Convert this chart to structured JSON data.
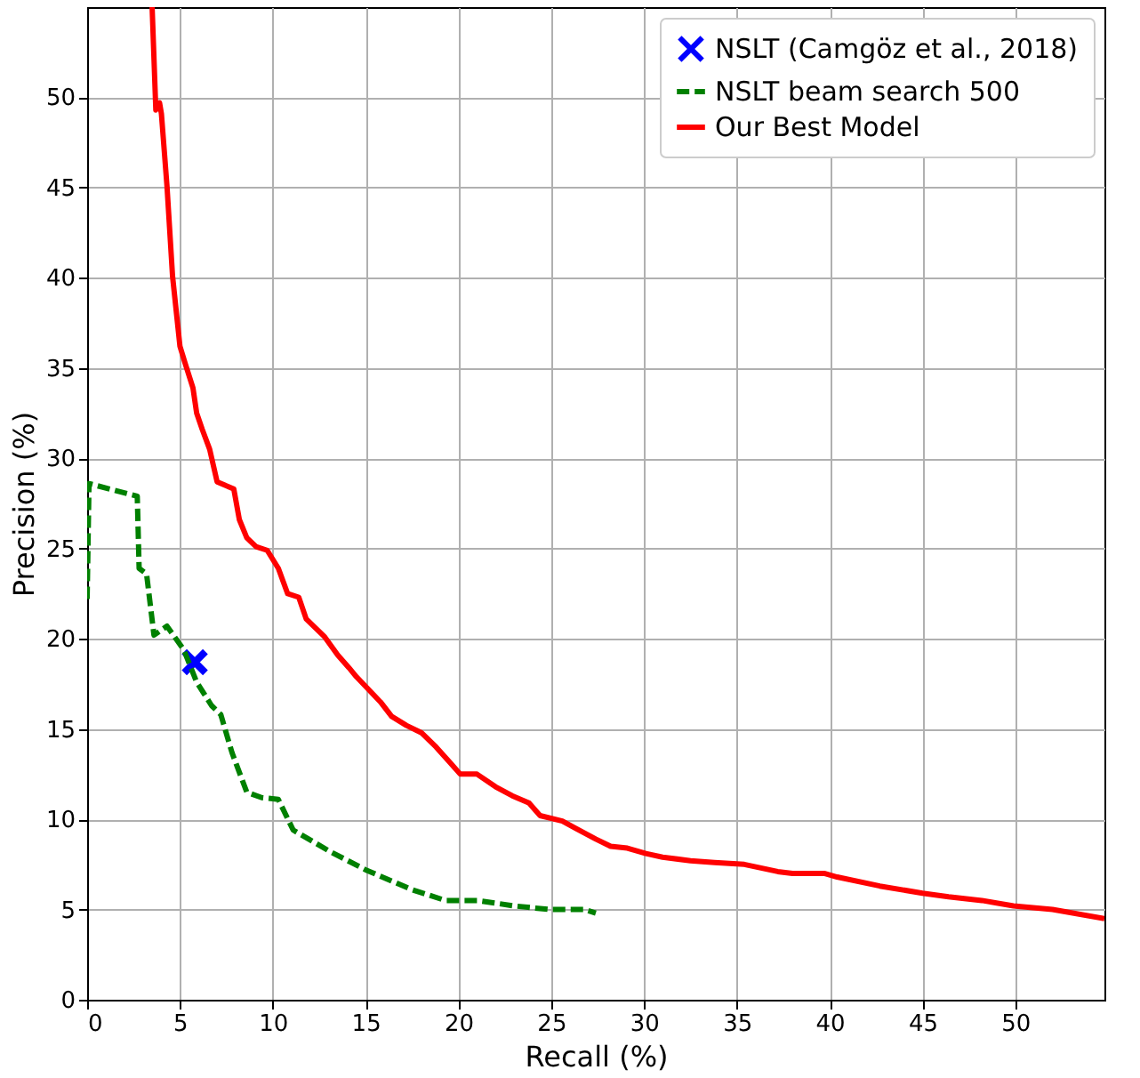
{
  "chart_data": {
    "type": "line",
    "xlabel": "Recall (%)",
    "ylabel": "Precision (%)",
    "xlim": [
      0,
      54.8
    ],
    "ylim": [
      0,
      55
    ],
    "xticks": [
      0,
      5,
      10,
      15,
      20,
      25,
      30,
      35,
      40,
      45,
      50
    ],
    "yticks": [
      0,
      5,
      10,
      15,
      20,
      25,
      30,
      35,
      40,
      45,
      50
    ],
    "grid": true,
    "legend": "top right",
    "series": [
      {
        "name": "NSLT (Camgöz et al., 2018)",
        "type": "scatter",
        "marker": "cross",
        "color": "#0000ff",
        "x": [
          5.8
        ],
        "values": [
          18.7
        ]
      },
      {
        "name": "NSLT beam search 500",
        "line_style": "dashed",
        "color": "#008000",
        "x": [
          0,
          0.1,
          2.7,
          2.8,
          3.2,
          3.6,
          4.3,
          5.2,
          5.9,
          6.7,
          7.2,
          7.8,
          8.6,
          9.4,
          10.3,
          11.1,
          13.1,
          15.0,
          17.5,
          19.3,
          21.0,
          23.0,
          24.9,
          26.8,
          27.4
        ],
        "values": [
          22.2,
          28.6,
          27.9,
          23.9,
          23.6,
          20.2,
          20.7,
          19.4,
          17.6,
          16.3,
          15.8,
          13.7,
          11.5,
          11.2,
          11.1,
          9.4,
          8.2,
          7.2,
          6.1,
          5.5,
          5.5,
          5.2,
          5.0,
          5.0,
          4.8
        ]
      },
      {
        "name": "Our Best Model",
        "line_style": "solid",
        "color": "#ff0000",
        "x": [
          3.5,
          3.7,
          3.9,
          4.0,
          4.3,
          4.6,
          5.0,
          5.3,
          5.7,
          5.9,
          6.2,
          6.6,
          7.0,
          7.9,
          8.2,
          8.6,
          9.1,
          9.7,
          10.3,
          10.8,
          11.4,
          11.8,
          12.8,
          13.5,
          14.1,
          14.5,
          15.8,
          16.4,
          17.2,
          18.0,
          18.8,
          19.5,
          20.1,
          21.0,
          22.0,
          22.9,
          23.8,
          24.4,
          25.6,
          26.3,
          27.4,
          28.2,
          29.1,
          30.1,
          31.0,
          32.5,
          33.8,
          35.4,
          37.2,
          38.0,
          39.7,
          40.4,
          42.7,
          45.0,
          46.4,
          48.2,
          49.9,
          52.0,
          54.8
        ],
        "values": [
          55,
          49.3,
          49.7,
          49.1,
          45.1,
          40.1,
          36.2,
          35.2,
          33.9,
          32.5,
          31.6,
          30.5,
          28.7,
          28.3,
          26.6,
          25.6,
          25.1,
          24.9,
          23.9,
          22.5,
          22.3,
          21.1,
          20.1,
          19.1,
          18.4,
          17.9,
          16.5,
          15.7,
          15.2,
          14.8,
          14.0,
          13.2,
          12.5,
          12.5,
          11.8,
          11.3,
          10.9,
          10.2,
          9.9,
          9.5,
          8.9,
          8.5,
          8.4,
          8.1,
          7.9,
          7.7,
          7.6,
          7.5,
          7.1,
          7.0,
          7.0,
          6.8,
          6.3,
          5.9,
          5.7,
          5.5,
          5.2,
          5.0,
          4.5
        ]
      }
    ]
  }
}
